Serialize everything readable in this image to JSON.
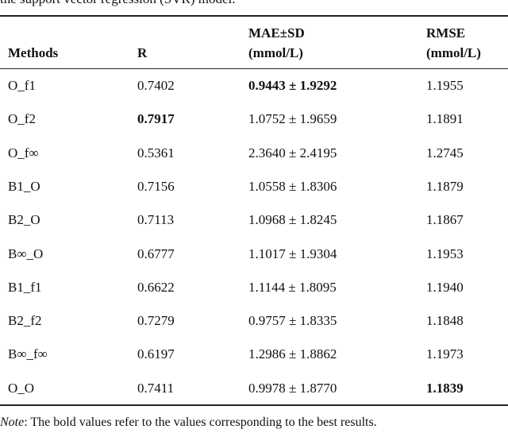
{
  "caption": "the support vector regression (SVR) model.",
  "table": {
    "headers": [
      [
        "Methods"
      ],
      [
        "R"
      ],
      [
        "MAE±SD",
        "(mmol/L)"
      ],
      [
        "RMSE",
        "(mmol/L)"
      ]
    ],
    "rows": [
      [
        "O_f1",
        "0.7402",
        "0.9443 ± 1.9292",
        "1.1955"
      ],
      [
        "O_f2",
        "0.7917",
        "1.0752 ± 1.9659",
        "1.1891"
      ],
      [
        "O_f∞",
        "0.5361",
        "2.3640 ± 2.4195",
        "1.2745"
      ],
      [
        "B1_O",
        "0.7156",
        "1.0558 ± 1.8306",
        "1.1879"
      ],
      [
        "B2_O",
        "0.7113",
        "1.0968 ± 1.8245",
        "1.1867"
      ],
      [
        "B∞_O",
        "0.6777",
        "1.1017 ± 1.9304",
        "1.1953"
      ],
      [
        "B1_f1",
        "0.6622",
        "1.1144 ± 1.8095",
        "1.1940"
      ],
      [
        "B2_f2",
        "0.7279",
        "0.9757 ± 1.8335",
        "1.1848"
      ],
      [
        "B∞_f∞",
        "0.6197",
        "1.2986 ± 1.8862",
        "1.1973"
      ],
      [
        "O_O",
        "0.7411",
        "0.9978 ± 1.8770",
        "1.1839"
      ]
    ],
    "bold_cells": [
      [
        0,
        2
      ],
      [
        1,
        1
      ],
      [
        9,
        3
      ]
    ]
  },
  "note": {
    "label": "Note",
    "text": ": The bold values refer to the values corresponding to the best results."
  }
}
